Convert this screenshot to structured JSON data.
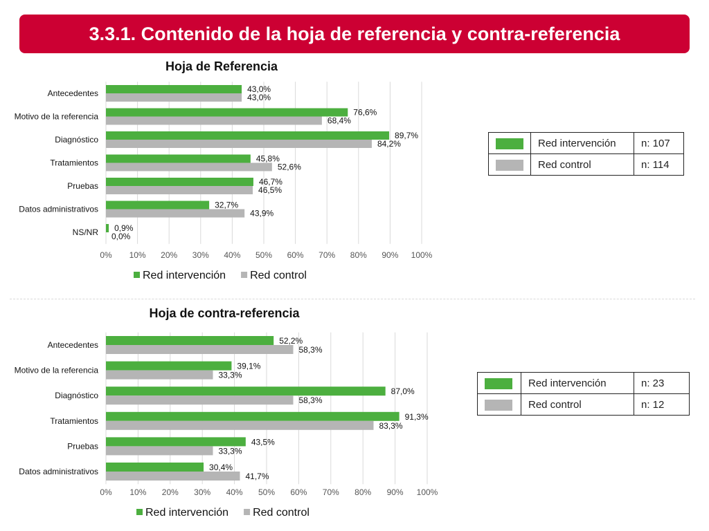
{
  "title": "3.3.1. Contenido de la hoja de referencia y contra-referencia",
  "colors": {
    "banner": "#cc0033",
    "intervencion": "#4caf3f",
    "control": "#b5b5b5"
  },
  "legend_tables": [
    {
      "rows": [
        {
          "label": "Red intervención",
          "n": "n: 107",
          "color": "#4caf3f"
        },
        {
          "label": "Red control",
          "n": "n: 114",
          "color": "#b5b5b5"
        }
      ]
    },
    {
      "rows": [
        {
          "label": "Red intervención",
          "n": "n: 23",
          "color": "#4caf3f"
        },
        {
          "label": "Red control",
          "n": "n: 12",
          "color": "#b5b5b5"
        }
      ]
    }
  ],
  "chart_data": [
    {
      "type": "bar",
      "orientation": "horizontal",
      "title": "Hoja de Referencia",
      "categories": [
        "Antecedentes",
        "Motivo de la referencia",
        "Diagnóstico",
        "Tratamientos",
        "Pruebas",
        "Datos administrativos",
        "NS/NR"
      ],
      "series": [
        {
          "name": "Red intervención",
          "values": [
            43.0,
            76.6,
            89.7,
            45.8,
            46.7,
            32.7,
            0.9
          ],
          "labels": [
            "43,0%",
            "76,6%",
            "89,7%",
            "45,8%",
            "46,7%",
            "32,7%",
            "0,9%"
          ]
        },
        {
          "name": "Red control",
          "values": [
            43.0,
            68.4,
            84.2,
            52.6,
            46.5,
            43.9,
            0.0
          ],
          "labels": [
            "43,0%",
            "68,4%",
            "84,2%",
            "52,6%",
            "46,5%",
            "43,9%",
            "0,0%"
          ]
        }
      ],
      "xlim": [
        0,
        100
      ],
      "xticks": [
        "0%",
        "10%",
        "20%",
        "30%",
        "40%",
        "50%",
        "60%",
        "70%",
        "80%",
        "90%",
        "100%"
      ],
      "grid": true,
      "legend": "bottom"
    },
    {
      "type": "bar",
      "orientation": "horizontal",
      "title": "Hoja de contra-referencia",
      "categories": [
        "Antecedentes",
        "Motivo de la referencia",
        "Diagnóstico",
        "Tratamientos",
        "Pruebas",
        "Datos administrativos"
      ],
      "series": [
        {
          "name": "Red intervención",
          "values": [
            52.2,
            39.1,
            87.0,
            91.3,
            43.5,
            30.4
          ],
          "labels": [
            "52,2%",
            "39,1%",
            "87,0%",
            "91,3%",
            "43,5%",
            "30,4%"
          ]
        },
        {
          "name": "Red control",
          "values": [
            58.3,
            33.3,
            58.3,
            83.3,
            33.3,
            41.7
          ],
          "labels": [
            "58,3%",
            "33,3%",
            "58,3%",
            "83,3%",
            "33,3%",
            "41,7%"
          ]
        }
      ],
      "xlim": [
        0,
        100
      ],
      "xticks": [
        "0%",
        "10%",
        "20%",
        "30%",
        "40%",
        "50%",
        "60%",
        "70%",
        "80%",
        "90%",
        "100%"
      ],
      "grid": true,
      "legend": "bottom"
    }
  ]
}
